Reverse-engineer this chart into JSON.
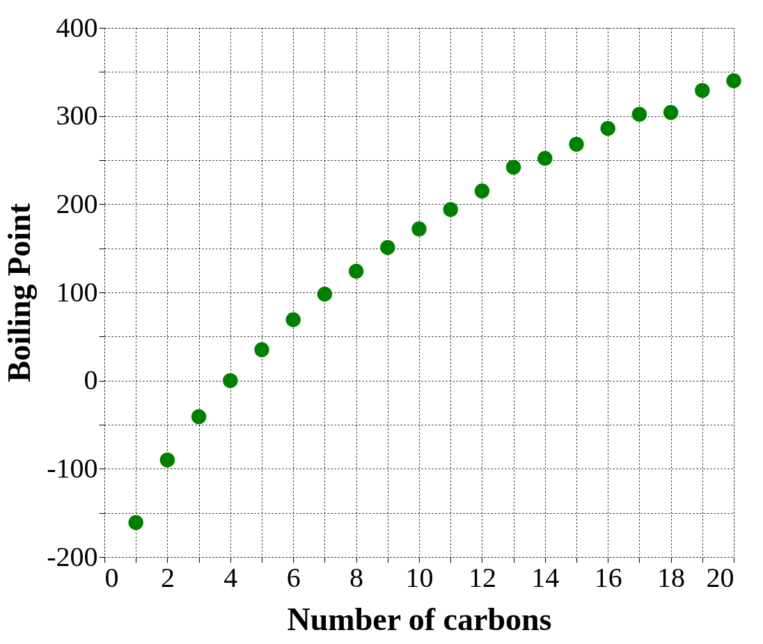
{
  "chart_data": {
    "type": "scatter",
    "xlabel": "Number of carbons",
    "ylabel": "Boiling Point",
    "x": [
      1,
      2,
      3,
      4,
      5,
      6,
      7,
      8,
      9,
      10,
      11,
      12,
      13,
      14,
      15,
      16,
      17,
      18,
      19,
      20
    ],
    "series": [
      {
        "color": "#008000",
        "values": [
          -161,
          -90,
          -41,
          0,
          35,
          69,
          98,
          124,
          151,
          172,
          194,
          215,
          242,
          252,
          268,
          286,
          302,
          304,
          329,
          340
        ]
      }
    ],
    "xlim": [
      0,
      20
    ],
    "xticks": [
      0,
      {
        "value": 1,
        "label": null
      },
      2,
      {
        "value": 3,
        "label": null
      },
      4,
      {
        "value": 5,
        "label": null
      },
      6,
      {
        "value": 7,
        "label": null
      },
      8,
      {
        "value": 9,
        "label": null
      },
      10,
      {
        "value": 11,
        "label": null
      },
      12,
      {
        "value": 13,
        "label": null
      },
      14,
      {
        "value": 15,
        "label": null
      },
      16,
      {
        "value": 17,
        "label": null
      },
      18,
      {
        "value": 19,
        "label": null
      },
      20
    ],
    "ylim": [
      -200,
      400
    ],
    "yticks": [
      -200,
      {
        "value": -150,
        "label": null
      },
      -100,
      {
        "value": -50,
        "label": null
      },
      0,
      {
        "value": 50,
        "label": null
      },
      100,
      {
        "value": 150,
        "label": null
      },
      200,
      {
        "value": 250,
        "label": null
      },
      300,
      {
        "value": 350,
        "label": null
      },
      400
    ],
    "grid": true,
    "marker": "circle"
  }
}
